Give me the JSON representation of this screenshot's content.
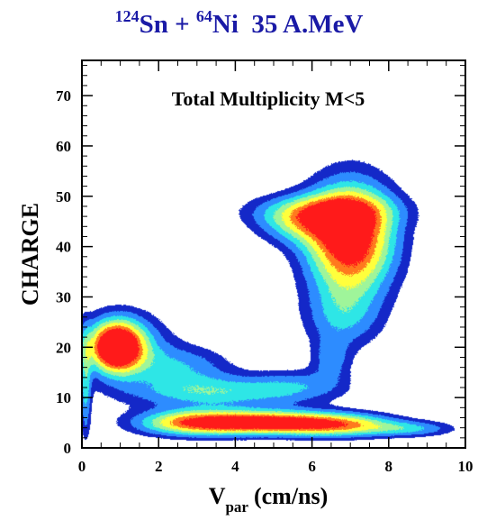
{
  "title": {
    "mass_a": "124",
    "element_a": "Sn",
    "plus": " + ",
    "mass_b": "64",
    "element_b": "Ni",
    "energy": "35 A.MeV"
  },
  "chart_data": {
    "type": "heatmap",
    "annotation": "Total Multiplicity M<5",
    "xlabel_main": "V",
    "xlabel_sub": "par",
    "xlabel_unit": "(cm/ns)",
    "ylabel": "CHARGE",
    "xlim": [
      0,
      10
    ],
    "ylim": [
      0,
      77
    ],
    "xticks": [
      {
        "value": 0,
        "label": "0"
      },
      {
        "value": 2,
        "label": "2"
      },
      {
        "value": 4,
        "label": "4"
      },
      {
        "value": 6,
        "label": "6"
      },
      {
        "value": 8,
        "label": "8"
      },
      {
        "value": 10,
        "label": "10"
      }
    ],
    "yticks": [
      {
        "value": 0,
        "label": "0"
      },
      {
        "value": 10,
        "label": "10"
      },
      {
        "value": 20,
        "label": "20"
      },
      {
        "value": 30,
        "label": "30"
      },
      {
        "value": 40,
        "label": "40"
      },
      {
        "value": 50,
        "label": "50"
      },
      {
        "value": 60,
        "label": "60"
      },
      {
        "value": 70,
        "label": "70"
      }
    ],
    "grid": false,
    "colorscale": [
      "#1428c8",
      "#2d8cff",
      "#2ee6e6",
      "#9ff59a",
      "#ffff3c",
      "#ff7a1e",
      "#ff1a1a"
    ],
    "color_levels": [
      0.12,
      0.22,
      0.34,
      0.46,
      0.58,
      0.72,
      0.84
    ],
    "clusters": [
      {
        "name": "quasi-projectile",
        "x": 7.0,
        "y": 41.5,
        "sx": 0.78,
        "sy": 7.5,
        "a": 1.05
      },
      {
        "name": "quasi-projectile-upper",
        "x": 6.3,
        "y": 47.0,
        "sx": 1.25,
        "sy": 2.4,
        "a": 0.42
      },
      {
        "name": "quasi-projectile-shoulder",
        "x": 5.8,
        "y": 44.5,
        "sx": 0.8,
        "sy": 3.0,
        "a": 0.38
      },
      {
        "name": "quasi-projectile-tail",
        "x": 6.8,
        "y": 26.0,
        "sx": 0.7,
        "sy": 4.5,
        "a": 0.3
      },
      {
        "name": "quasi-target",
        "x": 0.9,
        "y": 20.0,
        "sx": 0.45,
        "sy": 3.3,
        "a": 1.05
      },
      {
        "name": "quasi-target-halo",
        "x": 1.1,
        "y": 20.5,
        "sx": 0.8,
        "sy": 4.5,
        "a": 0.38
      },
      {
        "name": "imf-band",
        "x": 4.8,
        "y": 5.0,
        "sx": 1.35,
        "sy": 1.6,
        "a": 0.95
      },
      {
        "name": "imf-band-left",
        "x": 2.8,
        "y": 5.0,
        "sx": 1.0,
        "sy": 1.8,
        "a": 0.6
      },
      {
        "name": "imf-band-right",
        "x": 6.8,
        "y": 4.5,
        "sx": 1.0,
        "sy": 1.6,
        "a": 0.55
      },
      {
        "name": "imf-tail",
        "x": 8.6,
        "y": 3.8,
        "sx": 0.8,
        "sy": 1.1,
        "a": 0.3
      },
      {
        "name": "mid-band",
        "x": 3.5,
        "y": 11.0,
        "sx": 1.6,
        "sy": 2.2,
        "a": 0.4
      },
      {
        "name": "mid-band-right",
        "x": 5.6,
        "y": 12.5,
        "sx": 0.9,
        "sy": 2.2,
        "a": 0.22
      },
      {
        "name": "diagonal-ridge",
        "x": 2.6,
        "y": 16.0,
        "sx": 0.9,
        "sy": 3.0,
        "a": 0.3
      },
      {
        "name": "bridge",
        "x": 6.5,
        "y": 17.5,
        "sx": 0.35,
        "sy": 3.0,
        "a": 0.25
      },
      {
        "name": "low-velocity-edge",
        "x": 0.1,
        "y": 12.0,
        "sx": 0.1,
        "sy": 7.0,
        "a": 0.35
      }
    ]
  }
}
